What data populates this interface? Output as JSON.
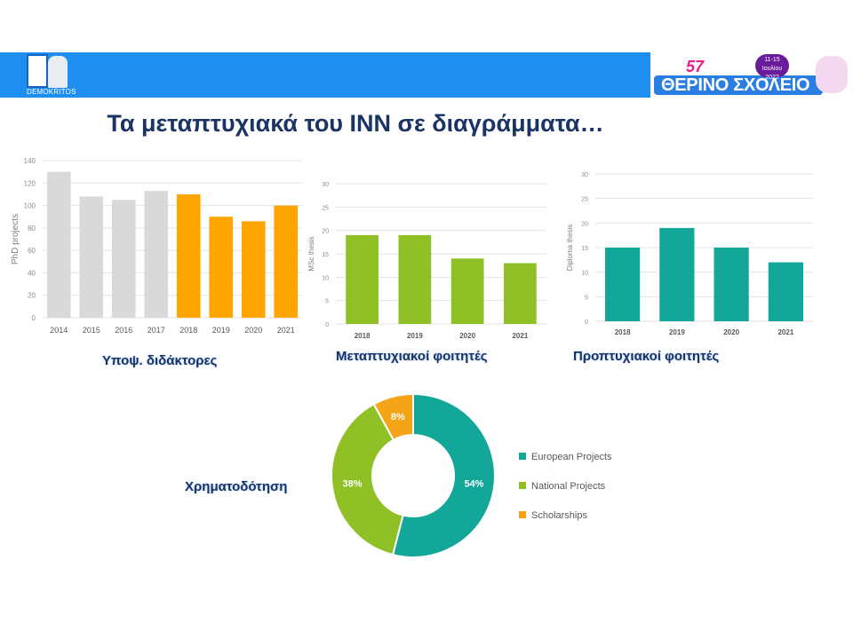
{
  "header": {
    "left_logo_text": "DEMOKRITOS",
    "right_logo_edition": "57",
    "right_logo_dates": "11-15 Ιουλίου 2022",
    "right_logo_title": "ΘΕΡΙΝΟ ΣΧΟΛΕΙΟ"
  },
  "page": {
    "title": "Τα μεταπτυχιακά του ΙΝΝ σε διαγράμματα…"
  },
  "labels": {
    "phd": "Υποψ. διδάκτορες",
    "msc": "Μεταπτυχιακοί φοιτητές",
    "diploma": "Προπτυχιακοί φοιτητές",
    "funding": "Χρηματοδότηση"
  },
  "chart_data": [
    {
      "type": "bar",
      "categories": [
        "2014",
        "2015",
        "2016",
        "2017",
        "2018",
        "2019",
        "2020",
        "2021"
      ],
      "values": [
        130,
        108,
        105,
        113,
        110,
        90,
        86,
        100
      ],
      "colors": [
        "#d9d9d9",
        "#d9d9d9",
        "#d9d9d9",
        "#d9d9d9",
        "#ffa500",
        "#ffa500",
        "#ffa500",
        "#ffa500"
      ],
      "ylabel": "PhD projects",
      "ylim": [
        0,
        140
      ],
      "yticks": [
        0,
        20,
        40,
        60,
        80,
        100,
        120,
        140
      ],
      "grid": true
    },
    {
      "type": "bar",
      "categories": [
        "2018",
        "2019",
        "2020",
        "2021"
      ],
      "values": [
        19,
        19,
        14,
        13
      ],
      "color": "#8fc126",
      "ylabel": "MSc thesis",
      "ylim": [
        0,
        30
      ],
      "yticks": [
        0,
        5,
        10,
        15,
        20,
        25,
        30
      ],
      "grid": true
    },
    {
      "type": "bar",
      "categories": [
        "2018",
        "2019",
        "2020",
        "2021"
      ],
      "values": [
        15,
        19,
        15,
        12
      ],
      "color": "#13a79a",
      "ylabel": "Diploma thesis",
      "ylim": [
        0,
        30
      ],
      "yticks": [
        0,
        5,
        10,
        15,
        20,
        25,
        30
      ],
      "grid": true
    },
    {
      "type": "pie",
      "donut": true,
      "labels": [
        "European Projects",
        "National Projects",
        "Scholarships"
      ],
      "values": [
        54,
        38,
        8
      ],
      "value_labels": [
        "54%",
        "38%",
        "8%"
      ],
      "colors": [
        "#13a79a",
        "#8fc126",
        "#f5a418"
      ],
      "legend": "right"
    }
  ]
}
